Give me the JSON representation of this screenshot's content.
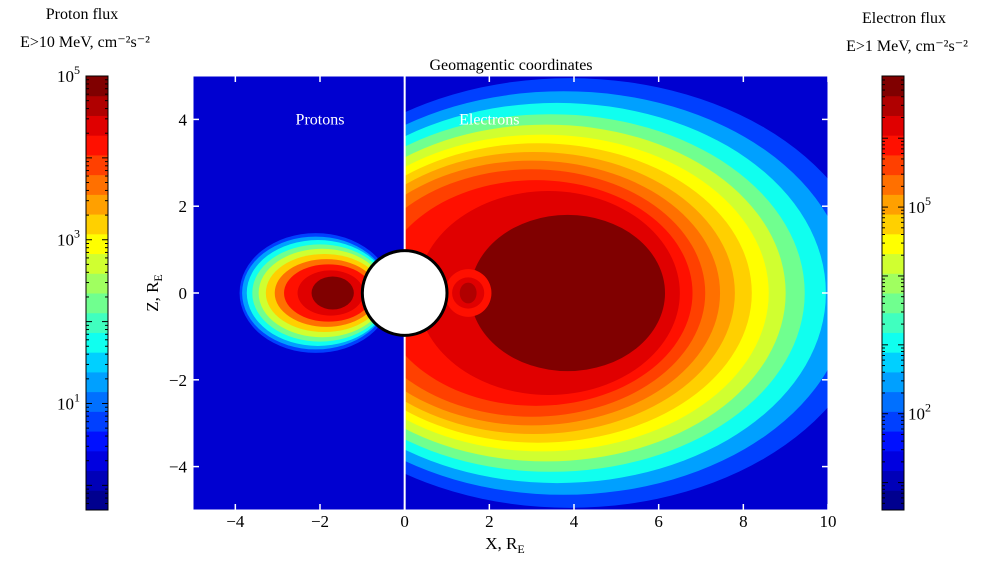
{
  "chart_data": {
    "type": "heatmap",
    "title": "Geomagentic coordinates",
    "xlabel": {
      "main": "X, R",
      "sub": "E"
    },
    "ylabel": {
      "main": "Z, R",
      "sub": "E"
    },
    "xlim": [
      -5,
      10
    ],
    "ylim": [
      -5,
      5
    ],
    "xticks": [
      -4,
      -2,
      0,
      2,
      4,
      6,
      8,
      10
    ],
    "yticks": [
      -4,
      -2,
      0,
      2,
      4
    ],
    "annotations": [
      {
        "text": "Protons",
        "x": -2.0,
        "y": 4.0
      },
      {
        "text": "Electrons",
        "x": 2.0,
        "y": 4.0
      }
    ],
    "earth": {
      "center": [
        0,
        0
      ],
      "radius": 1.0
    },
    "proton_colorbar": {
      "title_line1": "Proton flux",
      "title_line2": "E>10 MeV, cm⁻²s⁻²",
      "scale": "log",
      "range": [
        0.5,
        100000
      ],
      "ticks": [
        {
          "base": "10",
          "exp": "1",
          "value": 10
        },
        {
          "base": "10",
          "exp": "3",
          "value": 1000
        },
        {
          "base": "10",
          "exp": "5",
          "value": 100000
        }
      ]
    },
    "electron_colorbar": {
      "title_line1": "Electron flux",
      "title_line2": "E>1 MeV, cm⁻²s⁻²",
      "scale": "log",
      "range": [
        4,
        8000000
      ],
      "ticks": [
        {
          "base": "10",
          "exp": "2",
          "value": 100
        },
        {
          "base": "10",
          "exp": "5",
          "value": 100000
        }
      ]
    },
    "proton_belt": {
      "region": "x<0",
      "contours": [
        {
          "level": 1,
          "cx": -1.75,
          "cy": 0,
          "rx": 1.05,
          "ry": 0.65
        },
        {
          "level": 2,
          "cx": -1.9,
          "cy": 0,
          "rx": 1.55,
          "ry": 0.95
        },
        {
          "level": 3,
          "cx": -2.0,
          "cy": 0,
          "rx": 1.7,
          "ry": 1.18
        },
        {
          "level": 4,
          "cx": -2.05,
          "cy": 0,
          "rx": 1.75,
          "ry": 1.28
        },
        {
          "level": 5,
          "cx": -2.1,
          "cy": 0,
          "rx": 1.78,
          "ry": 1.35
        }
      ]
    },
    "electron_belt": {
      "region": "x>0",
      "contours": [
        {
          "level": 1,
          "cx": 3.9,
          "cy": 0,
          "rx": 7.2,
          "ry": 4.9
        },
        {
          "level": 2,
          "cx": 3.7,
          "cy": 0,
          "rx": 6.6,
          "ry": 4.5
        },
        {
          "level": 3,
          "cx": 3.5,
          "cy": 0,
          "rx": 6.1,
          "ry": 4.2
        },
        {
          "level": 4,
          "cx": 3.3,
          "cy": 0,
          "rx": 5.6,
          "ry": 3.9
        },
        {
          "level": 5,
          "cx": 3.2,
          "cy": 0,
          "rx": 5.1,
          "ry": 3.6
        },
        {
          "level": 6,
          "cx": 3.1,
          "cy": 0,
          "rx": 4.6,
          "ry": 3.3
        },
        {
          "level": 7,
          "cx": 3.1,
          "cy": 0,
          "rx": 4.1,
          "ry": 3.0
        },
        {
          "level": 8,
          "cx": 3.2,
          "cy": 0,
          "rx": 3.5,
          "ry": 2.6
        },
        {
          "level": 9,
          "cx": 3.5,
          "cy": 0,
          "rx": 2.9,
          "ry": 2.3
        },
        {
          "level": 10,
          "cx": 3.8,
          "cy": 0,
          "rx": 2.2,
          "ry": 1.85
        }
      ],
      "inner_spot": {
        "cx": 1.5,
        "cy": 0
      }
    },
    "colormap": [
      "#00008f",
      "#0000b8",
      "#0000e0",
      "#0010ff",
      "#0040ff",
      "#0070ff",
      "#00a0ff",
      "#00d0ff",
      "#10ffef",
      "#40ffbf",
      "#70ff8f",
      "#a0ff60",
      "#d0ff30",
      "#ffff00",
      "#ffd000",
      "#ffa000",
      "#ff7000",
      "#ff4000",
      "#ff1000",
      "#e00000",
      "#b00000",
      "#800000"
    ],
    "background_color": "#0000d0"
  }
}
